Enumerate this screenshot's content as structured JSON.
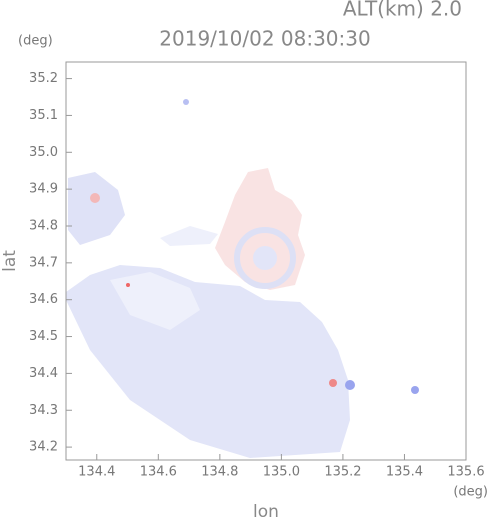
{
  "chart_data": {
    "type": "map",
    "title": "2019/10/02 08:30:30",
    "subtitle": "ALT(km)  2.0",
    "x_label": "lon",
    "y_label": "lat",
    "x_unit": "(deg)",
    "y_unit": "(deg)",
    "xlim": [
      134.3,
      135.6
    ],
    "ylim": [
      34.165,
      35.245
    ],
    "xticks": [
      134.4,
      134.6,
      134.8,
      {
        "value": 135,
        "label": "135.0"
      },
      135.2,
      135.4,
      135.6
    ],
    "yticks": [
      34.2,
      34.3,
      34.4,
      34.5,
      34.6,
      34.7,
      34.8,
      34.9,
      {
        "value": 35,
        "label": "35.0"
      },
      35.1,
      35.2
    ]
  }
}
